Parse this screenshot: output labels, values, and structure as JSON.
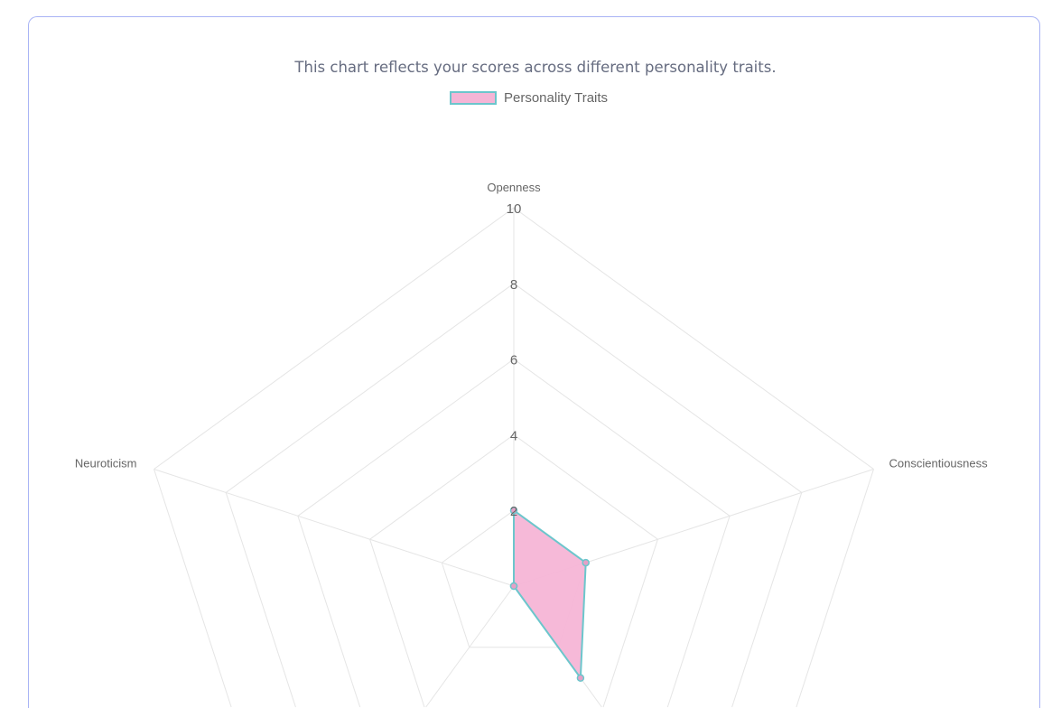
{
  "subtitle": "This chart reflects your scores across different personality traits.",
  "chart_data": {
    "type": "radar",
    "categories": [
      "Openness",
      "Conscientiousness",
      "",
      "",
      "Neuroticism"
    ],
    "series": [
      {
        "name": "Personality Traits",
        "values": [
          2,
          2,
          3,
          0,
          0
        ]
      }
    ],
    "rlim": [
      0,
      10
    ],
    "ticks": [
      "2",
      "4",
      "6",
      "8",
      "10"
    ],
    "grid": true,
    "legend": "top",
    "colors": {
      "fill": "#f5b5d6",
      "stroke": "#6cc6cc",
      "grid": "#e5e5e5",
      "border": "#a9b4f5"
    }
  }
}
